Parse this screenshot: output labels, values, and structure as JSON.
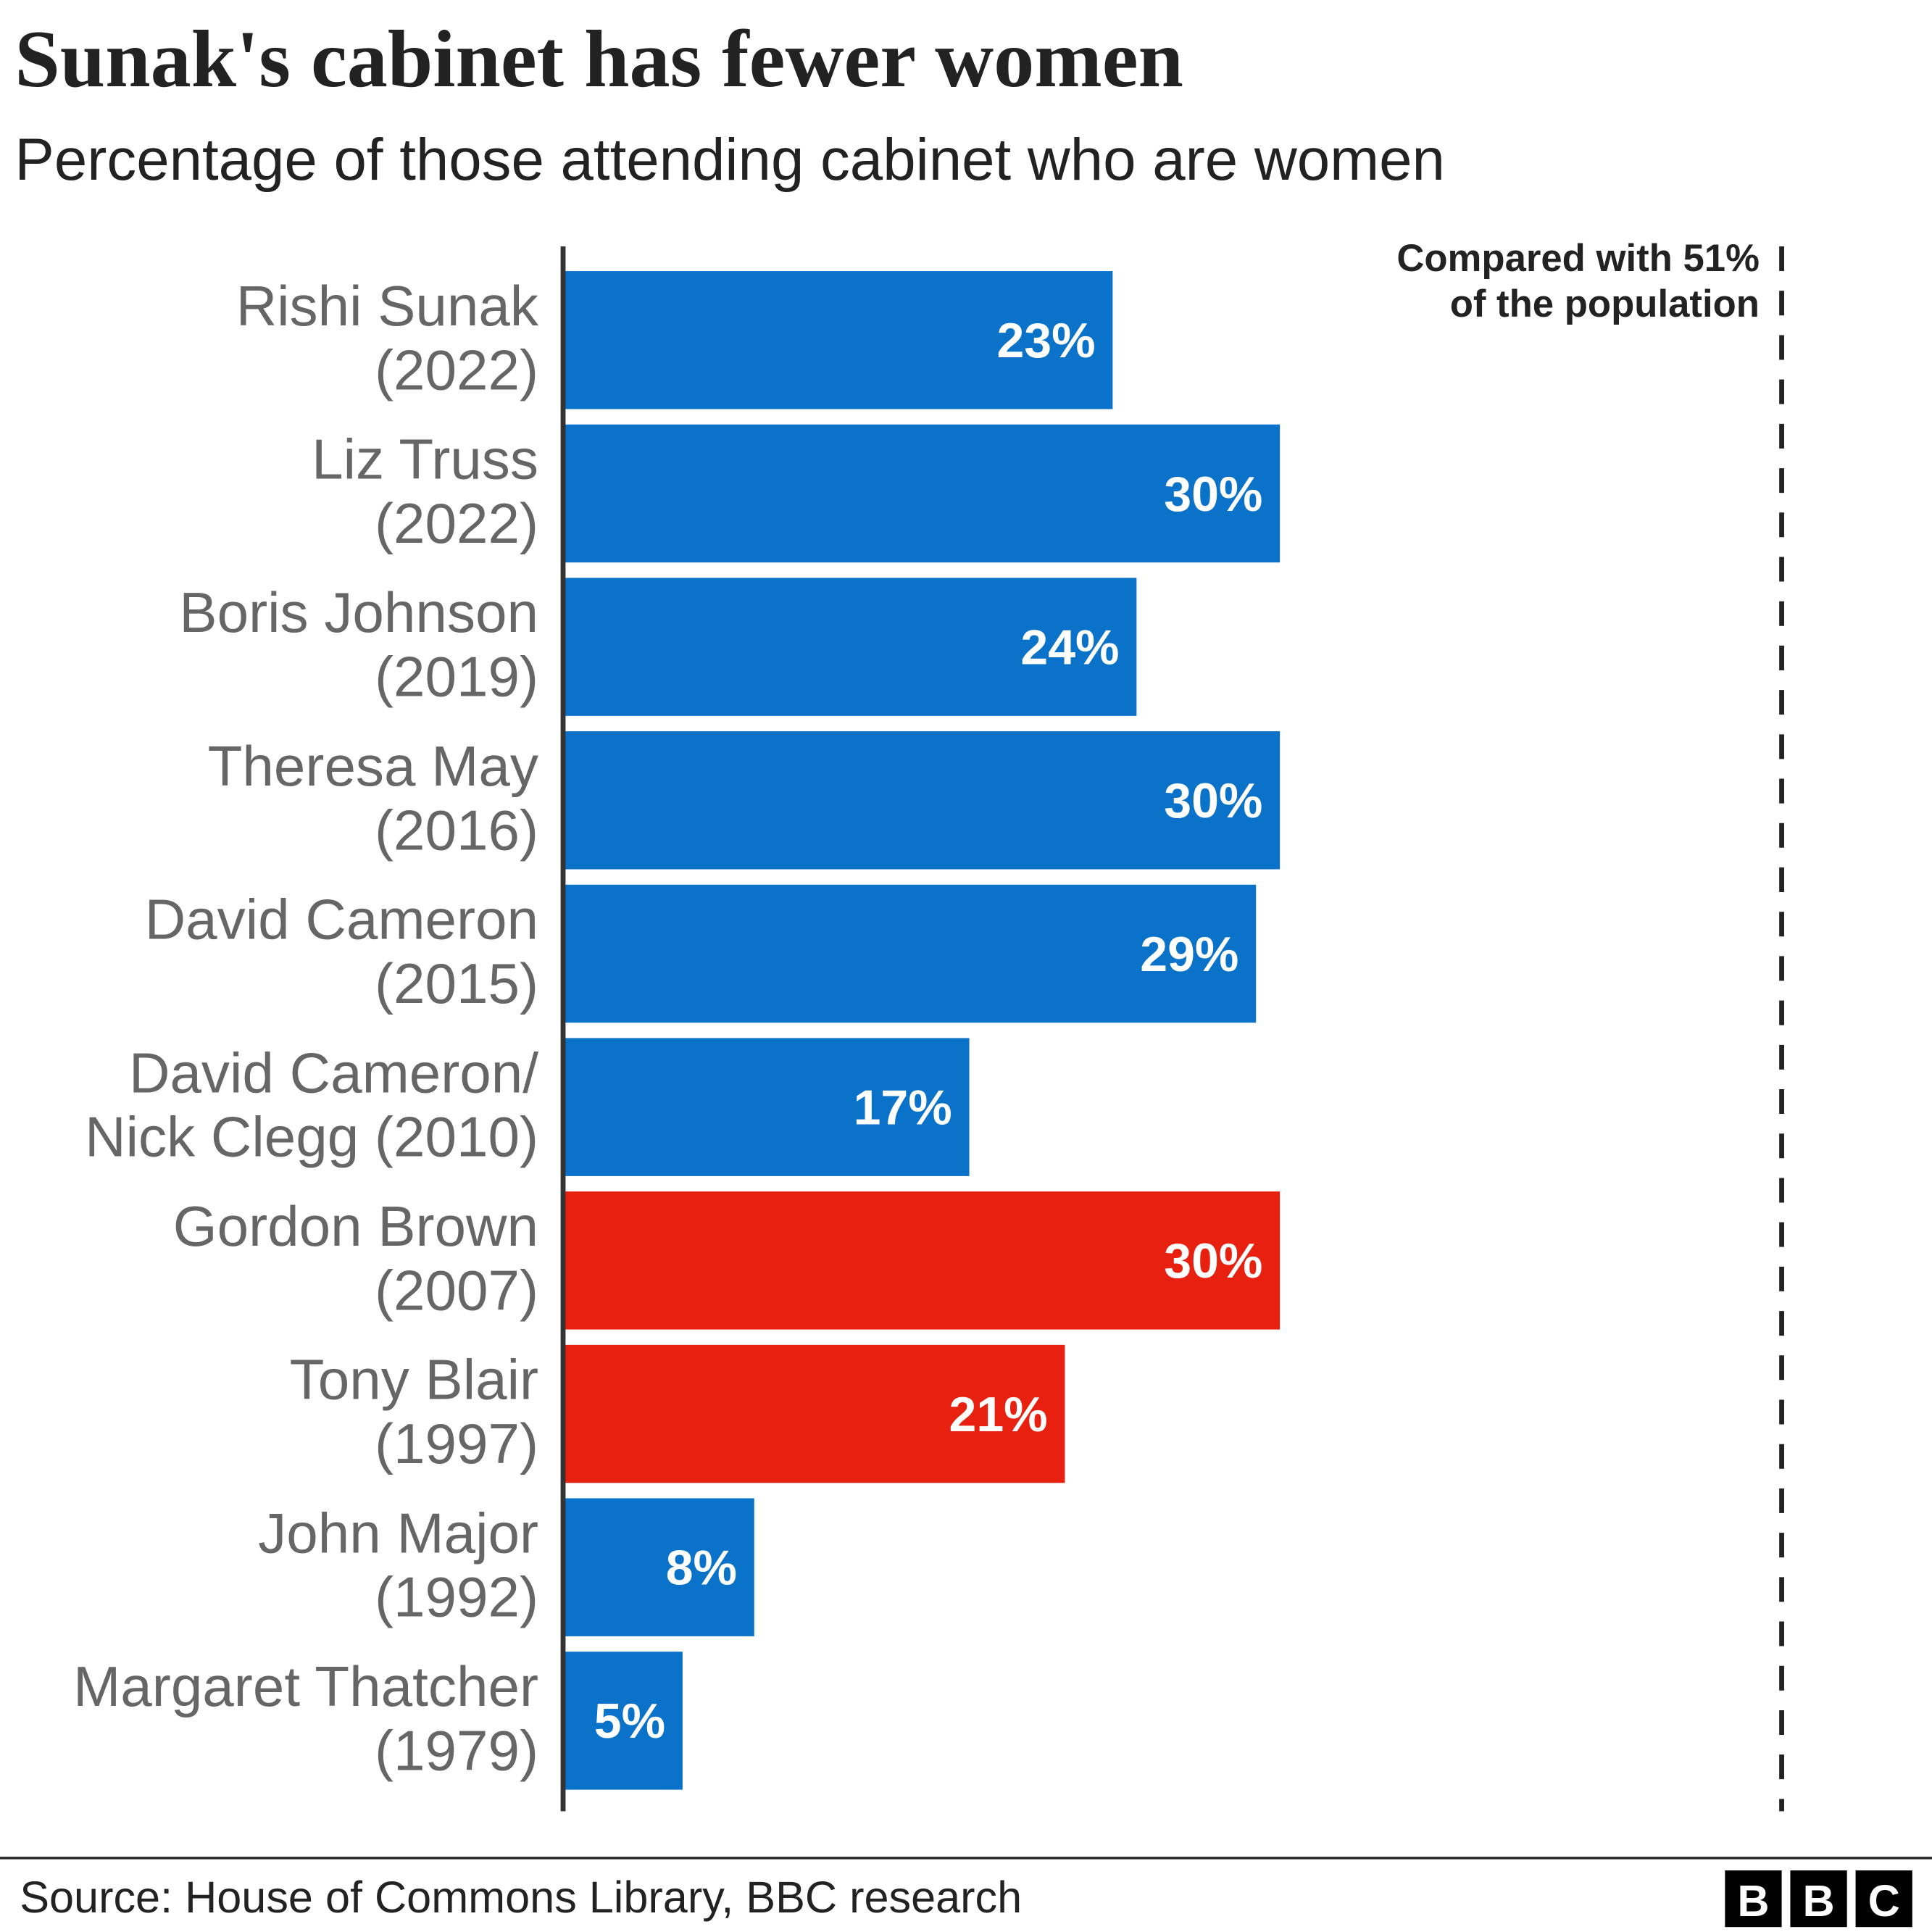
{
  "chart_data": {
    "type": "bar",
    "orientation": "horizontal",
    "title": "Sunak's cabinet has fewer women",
    "subtitle": "Percentage of those attending cabinet who are women",
    "categories": [
      [
        "Rishi Sunak",
        "(2022)"
      ],
      [
        "Liz Truss",
        "(2022)"
      ],
      [
        "Boris Johnson",
        "(2019)"
      ],
      [
        "Theresa May",
        "(2016)"
      ],
      [
        "David Cameron",
        "(2015)"
      ],
      [
        "David Cameron/",
        "Nick Clegg (2010)"
      ],
      [
        "Gordon Brown",
        "(2007)"
      ],
      [
        "Tony Blair",
        "(1997)"
      ],
      [
        "John Major",
        "(1992)"
      ],
      [
        "Margaret Thatcher",
        "(1979)"
      ]
    ],
    "values": [
      23,
      30,
      24,
      30,
      29,
      17,
      30,
      21,
      8,
      5
    ],
    "value_labels": [
      "23%",
      "30%",
      "24%",
      "30%",
      "29%",
      "17%",
      "30%",
      "21%",
      "8%",
      "5%"
    ],
    "colors": [
      "#0a72c8",
      "#0a72c8",
      "#0a72c8",
      "#0a72c8",
      "#0a72c8",
      "#0a72c8",
      "#e8200f",
      "#e8200f",
      "#0a72c8",
      "#0a72c8"
    ],
    "xlim": [
      0,
      51
    ],
    "reference_line": {
      "value": 51,
      "label_lines": [
        "Compared with 51%",
        "of the population"
      ]
    },
    "source": "Source: House of Commons Library, BBC research",
    "logo": [
      "B",
      "B",
      "C"
    ]
  }
}
